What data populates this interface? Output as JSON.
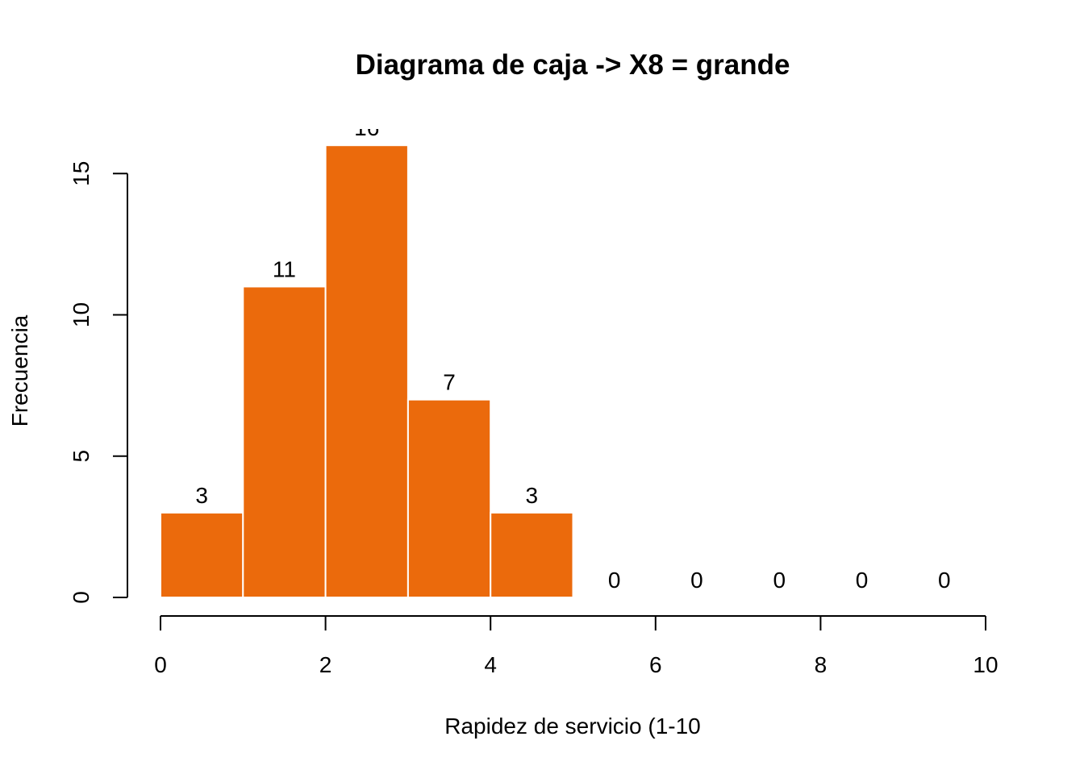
{
  "chart_data": {
    "type": "bar",
    "title": "Diagrama de caja -> X8 = grande",
    "xlabel": "Rapidez de servicio (1-10",
    "ylabel": "Frecuencia",
    "bins": [
      {
        "from": 0,
        "to": 1,
        "count": 3
      },
      {
        "from": 1,
        "to": 2,
        "count": 11
      },
      {
        "from": 2,
        "to": 3,
        "count": 16
      },
      {
        "from": 3,
        "to": 4,
        "count": 7
      },
      {
        "from": 4,
        "to": 5,
        "count": 3
      },
      {
        "from": 5,
        "to": 6,
        "count": 0
      },
      {
        "from": 6,
        "to": 7,
        "count": 0
      },
      {
        "from": 7,
        "to": 8,
        "count": 0
      },
      {
        "from": 8,
        "to": 9,
        "count": 0
      },
      {
        "from": 9,
        "to": 10,
        "count": 0
      }
    ],
    "x_ticks": [
      "0",
      "2",
      "4",
      "6",
      "8",
      "10"
    ],
    "y_ticks": [
      "0",
      "5",
      "10",
      "15"
    ],
    "xlim": [
      0,
      10
    ],
    "ylim": [
      0,
      16
    ],
    "grid": false,
    "bar_color": "#EB6A0C",
    "bar_border_color": "#FFFFFF"
  }
}
